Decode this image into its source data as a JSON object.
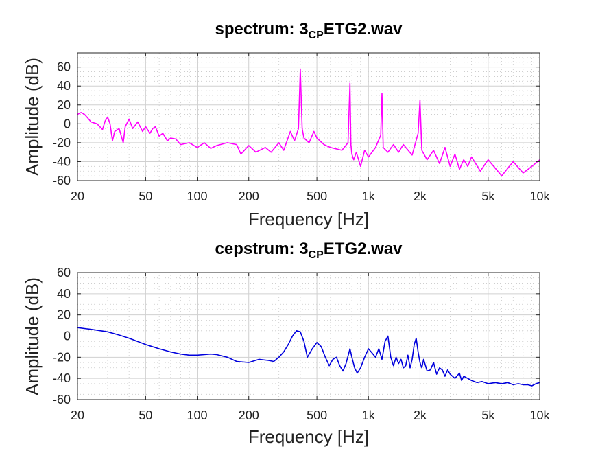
{
  "chart_data": [
    {
      "type": "line",
      "title": "spectrum: 3",
      "title_subscript": "CP",
      "title_suffix": "ETG2.wav",
      "xlabel": "Frequency [Hz]",
      "ylabel": "Amplitude (dB)",
      "xscale": "log",
      "xlim": [
        20,
        10000
      ],
      "ylim": [
        -60,
        75
      ],
      "xticks": [
        20,
        50,
        100,
        200,
        500,
        1000,
        2000,
        5000,
        10000
      ],
      "xtick_labels": [
        "20",
        "50",
        "100",
        "200",
        "500",
        "1k",
        "2k",
        "5k",
        "10k"
      ],
      "yticks": [
        -60,
        -40,
        -20,
        0,
        20,
        40,
        60
      ],
      "ytick_labels": [
        "-60",
        "-40",
        "-20",
        "0",
        "20",
        "40",
        "60"
      ],
      "grid": true,
      "series": [
        {
          "color": "#ff00ff",
          "x": [
            20,
            21,
            22,
            23,
            24,
            26,
            28,
            29,
            30,
            31,
            32,
            33,
            35,
            37,
            38,
            40,
            42,
            45,
            48,
            50,
            53,
            55,
            57,
            60,
            63,
            67,
            70,
            75,
            80,
            90,
            100,
            110,
            120,
            130,
            150,
            170,
            180,
            200,
            220,
            250,
            270,
            300,
            320,
            350,
            370,
            390,
            400,
            410,
            420,
            450,
            480,
            500,
            550,
            600,
            700,
            760,
            780,
            790,
            800,
            820,
            850,
            900,
            950,
            1000,
            1100,
            1180,
            1200,
            1220,
            1300,
            1400,
            1500,
            1600,
            1800,
            1950,
            2000,
            2050,
            2200,
            2400,
            2600,
            2800,
            3000,
            3200,
            3400,
            3600,
            3800,
            4000,
            4500,
            5000,
            6000,
            7000,
            8000,
            9000,
            10000
          ],
          "y": [
            10,
            12,
            10,
            6,
            2,
            0,
            -6,
            3,
            7,
            0,
            -18,
            -8,
            -5,
            -20,
            -3,
            5,
            -5,
            2,
            -8,
            -3,
            -10,
            -5,
            -3,
            -13,
            -10,
            -18,
            -15,
            -16,
            -22,
            -20,
            -25,
            -20,
            -26,
            -23,
            -20,
            -22,
            -32,
            -23,
            -30,
            -25,
            -30,
            -20,
            -28,
            -8,
            -18,
            -5,
            58,
            -5,
            -15,
            -20,
            -8,
            -15,
            -22,
            -25,
            -28,
            -20,
            43,
            -22,
            -32,
            -38,
            -30,
            -45,
            -28,
            -35,
            -25,
            -12,
            32,
            -25,
            -30,
            -22,
            -30,
            -22,
            -33,
            -10,
            25,
            -28,
            -38,
            -28,
            -42,
            -25,
            -45,
            -32,
            -48,
            -38,
            -45,
            -35,
            -50,
            -38,
            -55,
            -40,
            -52,
            -45,
            -38
          ]
        }
      ]
    },
    {
      "type": "line",
      "title": "cepstrum: 3",
      "title_subscript": "CP",
      "title_suffix": "ETG2.wav",
      "xlabel": "Frequency [Hz]",
      "ylabel": "Amplitude (dB)",
      "xscale": "log",
      "xlim": [
        20,
        10000
      ],
      "ylim": [
        -60,
        60
      ],
      "xticks": [
        20,
        50,
        100,
        200,
        500,
        1000,
        2000,
        5000,
        10000
      ],
      "xtick_labels": [
        "20",
        "50",
        "100",
        "200",
        "500",
        "1k",
        "2k",
        "5k",
        "10k"
      ],
      "yticks": [
        -60,
        -40,
        -20,
        0,
        20,
        40,
        60
      ],
      "ytick_labels": [
        "-60",
        "-40",
        "-20",
        "0",
        "20",
        "40",
        "60"
      ],
      "grid": true,
      "series": [
        {
          "color": "#0000dd",
          "x": [
            20,
            25,
            30,
            35,
            40,
            50,
            60,
            70,
            80,
            90,
            100,
            110,
            120,
            130,
            150,
            170,
            200,
            230,
            260,
            280,
            300,
            320,
            340,
            360,
            380,
            400,
            420,
            440,
            470,
            500,
            530,
            560,
            590,
            620,
            650,
            680,
            710,
            740,
            780,
            800,
            830,
            860,
            900,
            950,
            1000,
            1050,
            1100,
            1150,
            1200,
            1250,
            1300,
            1350,
            1400,
            1450,
            1500,
            1550,
            1600,
            1650,
            1700,
            1750,
            1800,
            1850,
            1900,
            1950,
            2000,
            2050,
            2100,
            2200,
            2300,
            2400,
            2500,
            2600,
            2700,
            2800,
            2900,
            3000,
            3200,
            3400,
            3500,
            3600,
            3800,
            4000,
            4300,
            4600,
            5000,
            5500,
            6000,
            6500,
            7000,
            7500,
            8000,
            8500,
            9000,
            9500,
            10000
          ],
          "y": [
            8,
            6,
            4,
            1,
            -2,
            -8,
            -12,
            -15,
            -17,
            -18,
            -18,
            -17.5,
            -17,
            -17.5,
            -20,
            -24,
            -25,
            -22,
            -23,
            -24,
            -20,
            -15,
            -8,
            0,
            5,
            4,
            -5,
            -20,
            -12,
            -6,
            -10,
            -20,
            -28,
            -22,
            -20,
            -28,
            -33,
            -26,
            -12,
            -20,
            -30,
            -35,
            -30,
            -20,
            -12,
            -16,
            -20,
            -12,
            -22,
            -5,
            0,
            -20,
            -28,
            -20,
            -26,
            -22,
            -30,
            -28,
            -18,
            -30,
            -22,
            -8,
            -2,
            -15,
            -25,
            -30,
            -22,
            -33,
            -32,
            -25,
            -36,
            -30,
            -32,
            -38,
            -32,
            -36,
            -40,
            -35,
            -42,
            -38,
            -40,
            -42,
            -44,
            -43,
            -45,
            -44,
            -45,
            -44,
            -46,
            -45,
            -46,
            -46,
            -47,
            -45,
            -44
          ]
        }
      ]
    }
  ]
}
